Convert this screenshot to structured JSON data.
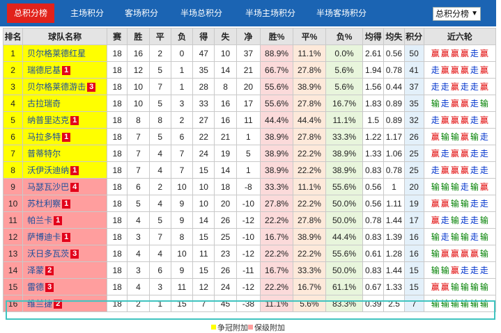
{
  "tabs": [
    {
      "label": "总积分榜",
      "active": true
    },
    {
      "label": "主场积分",
      "active": false
    },
    {
      "label": "客场积分",
      "active": false
    },
    {
      "label": "半场总积分",
      "active": false
    },
    {
      "label": "半场主场积分",
      "active": false
    },
    {
      "label": "半场客场积分",
      "active": false
    }
  ],
  "select": {
    "value": "总积分榜"
  },
  "headers": [
    "排名",
    "球队名称",
    "赛",
    "胜",
    "平",
    "负",
    "得",
    "失",
    "净",
    "胜%",
    "平%",
    "负%",
    "均得",
    "均失",
    "积分",
    "近六轮"
  ],
  "rows": [
    {
      "rank": "1",
      "team": "贝尔格莱德红星",
      "badge": "",
      "zone": "y",
      "p": "18",
      "w": "16",
      "d": "2",
      "l": "0",
      "gf": "47",
      "ga": "10",
      "gdiff": "37",
      "wp": "88.9%",
      "dp": "11.1%",
      "lp": "0.0%",
      "avgf": "2.61",
      "avga": "0.56",
      "pts": "50",
      "recent": [
        "赢",
        "赢",
        "赢",
        "赢",
        "走",
        "赢"
      ]
    },
    {
      "rank": "2",
      "team": "瑞德尼基",
      "badge": "1",
      "zone": "y",
      "p": "18",
      "w": "12",
      "d": "5",
      "l": "1",
      "gf": "35",
      "ga": "14",
      "gdiff": "21",
      "wp": "66.7%",
      "dp": "27.8%",
      "lp": "5.6%",
      "avgf": "1.94",
      "avga": "0.78",
      "pts": "41",
      "recent": [
        "走",
        "赢",
        "赢",
        "赢",
        "走",
        "赢"
      ]
    },
    {
      "rank": "3",
      "team": "贝尔格莱德游击",
      "badge": "3",
      "zone": "y",
      "p": "18",
      "w": "10",
      "d": "7",
      "l": "1",
      "gf": "28",
      "ga": "8",
      "gdiff": "20",
      "wp": "55.6%",
      "dp": "38.9%",
      "lp": "5.6%",
      "avgf": "1.56",
      "avga": "0.44",
      "pts": "37",
      "recent": [
        "走",
        "走",
        "赢",
        "走",
        "走",
        "赢"
      ]
    },
    {
      "rank": "4",
      "team": "古拉瑞奇",
      "badge": "",
      "zone": "y",
      "p": "18",
      "w": "10",
      "d": "5",
      "l": "3",
      "gf": "33",
      "ga": "16",
      "gdiff": "17",
      "wp": "55.6%",
      "dp": "27.8%",
      "lp": "16.7%",
      "avgf": "1.83",
      "avga": "0.89",
      "pts": "35",
      "recent": [
        "输",
        "走",
        "赢",
        "赢",
        "走",
        "输"
      ]
    },
    {
      "rank": "5",
      "team": "纳普里达克",
      "badge": "1",
      "zone": "y",
      "p": "18",
      "w": "8",
      "d": "8",
      "l": "2",
      "gf": "27",
      "ga": "16",
      "gdiff": "11",
      "wp": "44.4%",
      "dp": "44.4%",
      "lp": "11.1%",
      "avgf": "1.5",
      "avga": "0.89",
      "pts": "32",
      "recent": [
        "走",
        "赢",
        "赢",
        "赢",
        "走",
        "赢"
      ]
    },
    {
      "rank": "6",
      "team": "马拉多特",
      "badge": "1",
      "zone": "y",
      "p": "18",
      "w": "7",
      "d": "5",
      "l": "6",
      "gf": "22",
      "ga": "21",
      "gdiff": "1",
      "wp": "38.9%",
      "dp": "27.8%",
      "lp": "33.3%",
      "avgf": "1.22",
      "avga": "1.17",
      "pts": "26",
      "recent": [
        "赢",
        "输",
        "输",
        "赢",
        "输",
        "走"
      ]
    },
    {
      "rank": "7",
      "team": "普蒂特尔",
      "badge": "",
      "zone": "y",
      "p": "18",
      "w": "7",
      "d": "4",
      "l": "7",
      "gf": "24",
      "ga": "19",
      "gdiff": "5",
      "wp": "38.9%",
      "dp": "22.2%",
      "lp": "38.9%",
      "avgf": "1.33",
      "avga": "1.06",
      "pts": "25",
      "recent": [
        "赢",
        "走",
        "赢",
        "赢",
        "走",
        "走"
      ]
    },
    {
      "rank": "8",
      "team": "沃伊沃迪纳",
      "badge": "1",
      "zone": "y",
      "p": "18",
      "w": "7",
      "d": "4",
      "l": "7",
      "gf": "15",
      "ga": "14",
      "gdiff": "1",
      "wp": "38.9%",
      "dp": "22.2%",
      "lp": "38.9%",
      "avgf": "0.83",
      "avga": "0.78",
      "pts": "25",
      "recent": [
        "走",
        "赢",
        "赢",
        "赢",
        "走",
        "走"
      ]
    },
    {
      "rank": "9",
      "team": "马瑟瓦沙巴",
      "badge": "4",
      "zone": "p",
      "p": "18",
      "w": "6",
      "d": "2",
      "l": "10",
      "gf": "10",
      "ga": "18",
      "gdiff": "-8",
      "wp": "33.3%",
      "dp": "11.1%",
      "lp": "55.6%",
      "avgf": "0.56",
      "avga": "1",
      "pts": "20",
      "recent": [
        "输",
        "输",
        "输",
        "走",
        "输",
        "赢"
      ]
    },
    {
      "rank": "10",
      "team": "苏杜利察",
      "badge": "1",
      "zone": "p",
      "p": "18",
      "w": "5",
      "d": "4",
      "l": "9",
      "gf": "10",
      "ga": "20",
      "gdiff": "-10",
      "wp": "27.8%",
      "dp": "22.2%",
      "lp": "50.0%",
      "avgf": "0.56",
      "avga": "1.11",
      "pts": "19",
      "recent": [
        "赢",
        "赢",
        "输",
        "输",
        "走",
        "走"
      ]
    },
    {
      "rank": "11",
      "team": "帕兰卡",
      "badge": "1",
      "zone": "p",
      "p": "18",
      "w": "4",
      "d": "5",
      "l": "9",
      "gf": "14",
      "ga": "26",
      "gdiff": "-12",
      "wp": "22.2%",
      "dp": "27.8%",
      "lp": "50.0%",
      "avgf": "0.78",
      "avga": "1.44",
      "pts": "17",
      "recent": [
        "赢",
        "走",
        "输",
        "走",
        "走",
        "输"
      ]
    },
    {
      "rank": "12",
      "team": "萨博迪卡",
      "badge": "1",
      "zone": "p",
      "p": "18",
      "w": "3",
      "d": "7",
      "l": "8",
      "gf": "15",
      "ga": "25",
      "gdiff": "-10",
      "wp": "16.7%",
      "dp": "38.9%",
      "lp": "44.4%",
      "avgf": "0.83",
      "avga": "1.39",
      "pts": "16",
      "recent": [
        "输",
        "走",
        "输",
        "输",
        "走",
        "输"
      ]
    },
    {
      "rank": "13",
      "team": "沃日多瓦茨",
      "badge": "3",
      "zone": "p",
      "p": "18",
      "w": "4",
      "d": "4",
      "l": "10",
      "gf": "11",
      "ga": "23",
      "gdiff": "-12",
      "wp": "22.2%",
      "dp": "22.2%",
      "lp": "55.6%",
      "avgf": "0.61",
      "avga": "1.28",
      "pts": "16",
      "recent": [
        "输",
        "赢",
        "赢",
        "赢",
        "赢",
        "输"
      ]
    },
    {
      "rank": "14",
      "team": "泽蒙",
      "badge": "2",
      "zone": "p",
      "p": "18",
      "w": "3",
      "d": "6",
      "l": "9",
      "gf": "15",
      "ga": "26",
      "gdiff": "-11",
      "wp": "16.7%",
      "dp": "33.3%",
      "lp": "50.0%",
      "avgf": "0.83",
      "avga": "1.44",
      "pts": "15",
      "recent": [
        "输",
        "输",
        "赢",
        "走",
        "走",
        "走"
      ]
    },
    {
      "rank": "15",
      "team": "雷德",
      "badge": "3",
      "zone": "p",
      "p": "18",
      "w": "4",
      "d": "3",
      "l": "11",
      "gf": "12",
      "ga": "24",
      "gdiff": "-12",
      "wp": "22.2%",
      "dp": "16.7%",
      "lp": "61.1%",
      "avgf": "0.67",
      "avga": "1.33",
      "pts": "15",
      "recent": [
        "赢",
        "赢",
        "输",
        "输",
        "输",
        "输"
      ]
    },
    {
      "rank": "16",
      "team": "维兰捷",
      "badge": "2",
      "zone": "p",
      "p": "18",
      "w": "2",
      "d": "1",
      "l": "15",
      "gf": "7",
      "ga": "45",
      "gdiff": "-38",
      "wp": "11.1%",
      "dp": "5.6%",
      "lp": "83.3%",
      "avgf": "0.39",
      "avga": "2.5",
      "pts": "7",
      "recent": [
        "输",
        "输",
        "输",
        "输",
        "输",
        "输"
      ]
    }
  ],
  "legend": [
    {
      "label": "争冠附加",
      "color": "#ffff00"
    },
    {
      "label": "保级附加",
      "color": "#ff9e9e"
    }
  ]
}
